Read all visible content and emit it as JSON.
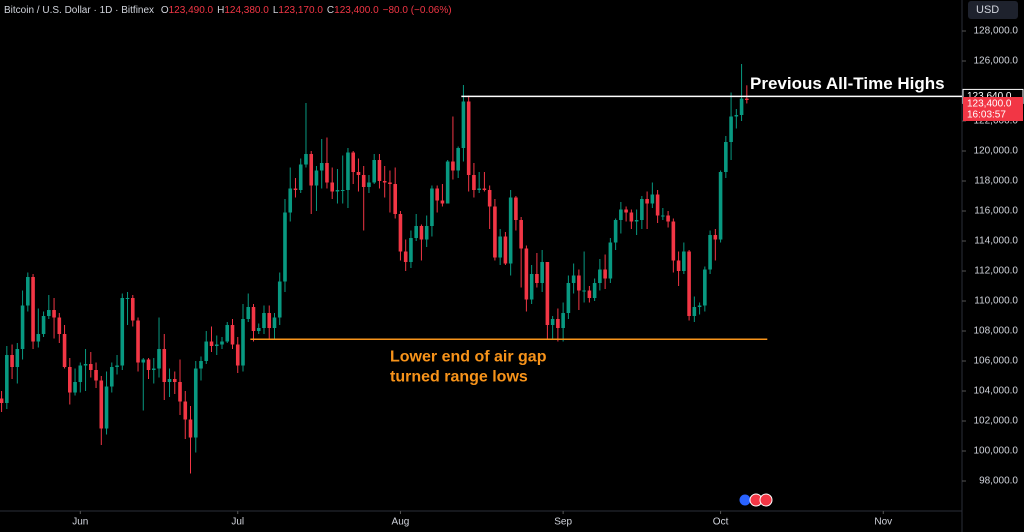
{
  "chart_data": {
    "type": "candlestick",
    "header": {
      "symbol": "Bitcoin / U.S. Dollar · 1D · Bitfinex",
      "fields": [
        {
          "key": "O",
          "text": "123,490.0"
        },
        {
          "key": "H",
          "text": "124,380.0"
        },
        {
          "key": "L",
          "text": "123,170.0"
        },
        {
          "key": "C",
          "text": "123,400.0"
        }
      ],
      "change": "−80.0 (−0.06%)"
    },
    "currency": "USD",
    "up_color": "#089981",
    "down_color": "#f23645",
    "xlim": [
      0.7,
      184
    ],
    "xticks": [
      {
        "value": 16,
        "label": "Jun"
      },
      {
        "value": 46,
        "label": "Jul"
      },
      {
        "value": 77,
        "label": "Aug"
      },
      {
        "value": 108,
        "label": "Sep"
      },
      {
        "value": 138,
        "label": "Oct"
      },
      {
        "value": 169,
        "label": "Nov"
      }
    ],
    "ylim": [
      96067,
      130067
    ],
    "yticks": [
      {
        "value": 98000,
        "label": "98,000.0"
      },
      {
        "value": 100000,
        "label": "100,000.0"
      },
      {
        "value": 102000,
        "label": "102,000.0"
      },
      {
        "value": 104000,
        "label": "104,000.0"
      },
      {
        "value": 106000,
        "label": "106,000.0"
      },
      {
        "value": 108000,
        "label": "108,000.0"
      },
      {
        "value": 110000,
        "label": "110,000.0"
      },
      {
        "value": 112000,
        "label": "112,000.0"
      },
      {
        "value": 114000,
        "label": "114,000.0"
      },
      {
        "value": 116000,
        "label": "116,000.0"
      },
      {
        "value": 118000,
        "label": "118,000.0"
      },
      {
        "value": 120000,
        "label": "120,000.0"
      },
      {
        "value": 122000,
        "label": "122,000.0"
      },
      {
        "value": 126000,
        "label": "126,000.0"
      },
      {
        "value": 128000,
        "label": "128,000.0"
      }
    ],
    "grid": false,
    "open": [
      103800,
      103500,
      103200,
      106400,
      105600,
      106800,
      109700,
      111600,
      107300,
      107800,
      109000,
      109400,
      108900,
      107800,
      105600,
      103900,
      104600,
      105700,
      105800,
      105400,
      104700,
      101500,
      104300,
      105600,
      105700,
      110200,
      110200,
      108700,
      105900,
      106100,
      105400,
      105500,
      106800,
      104600,
      104800,
      104600,
      103300,
      102100,
      100900,
      105500,
      106000,
      107300,
      107000,
      107100,
      107300,
      108400,
      107100,
      105700,
      108800,
      109600,
      108000,
      108200,
      109200,
      108200,
      108900,
      111300,
      115900,
      117500,
      117400,
      119100,
      119800,
      117700,
      118700,
      119200,
      117900,
      117300,
      117400,
      117400,
      119900,
      118600,
      118400,
      117600,
      117900,
      119400,
      118000,
      117900,
      117800,
      115800,
      113300,
      112600,
      114200,
      115000,
      114100,
      115000,
      117500,
      116700,
      116500,
      119300,
      118700,
      120200,
      123300,
      118400,
      117400,
      117500,
      117400,
      116300,
      112900,
      114300,
      112500,
      116900,
      115400,
      113500,
      110100,
      111800,
      111200,
      112600,
      108400,
      108800,
      108200,
      109200,
      111200,
      111700,
      110700,
      110700,
      110200,
      111200,
      112100,
      111500,
      113900,
      115400,
      116100,
      115900,
      115300,
      115400,
      116800,
      116500,
      117100,
      115700,
      115700,
      115300,
      112700,
      112000,
      113300,
      109000,
      109600,
      109700,
      112100,
      114400,
      114100,
      118600,
      120600,
      122300,
      122400,
      123490
    ],
    "high": [
      104400,
      104000,
      107000,
      107100,
      107200,
      110700,
      111900,
      111800,
      109500,
      109300,
      110400,
      110200,
      109200,
      108400,
      106200,
      105500,
      105900,
      106800,
      106600,
      105900,
      105000,
      105300,
      105900,
      106400,
      110500,
      110600,
      110400,
      108900,
      106200,
      106200,
      106200,
      108900,
      107800,
      105500,
      105300,
      106100,
      104000,
      103000,
      106000,
      106300,
      108000,
      108300,
      107700,
      107600,
      108600,
      108800,
      107600,
      109800,
      110500,
      109800,
      108500,
      109700,
      109700,
      109200,
      111900,
      116800,
      118900,
      118200,
      119500,
      123200,
      120000,
      119000,
      120800,
      120900,
      118900,
      118800,
      119700,
      120200,
      120000,
      119500,
      119000,
      118400,
      119800,
      119800,
      119000,
      118700,
      118900,
      116000,
      114100,
      114700,
      115800,
      115100,
      115700,
      117700,
      117700,
      117800,
      119400,
      122300,
      120300,
      124400,
      123700,
      119200,
      118600,
      118600,
      117700,
      116800,
      114800,
      114600,
      117400,
      117000,
      115600,
      113700,
      112400,
      113200,
      113400,
      112600,
      109000,
      109500,
      109900,
      111700,
      112500,
      112100,
      113300,
      111000,
      111500,
      112800,
      113100,
      114200,
      115500,
      116600,
      116300,
      116100,
      116100,
      117000,
      117300,
      117900,
      117400,
      116200,
      116000,
      115500,
      113300,
      113900,
      113400,
      110300,
      109900,
      112300,
      114700,
      114800,
      118700,
      121000,
      123900,
      122800,
      125800,
      124380
    ],
    "low": [
      102700,
      102600,
      102800,
      104800,
      104500,
      106100,
      109300,
      106800,
      106900,
      107600,
      108800,
      107500,
      107200,
      105500,
      103100,
      103700,
      103900,
      104000,
      104900,
      104200,
      100400,
      101100,
      103900,
      105100,
      105400,
      108400,
      108300,
      105300,
      102700,
      104800,
      104500,
      104900,
      103400,
      103600,
      103800,
      102400,
      100800,
      98500,
      99900,
      104700,
      105800,
      106600,
      106400,
      106800,
      107200,
      106800,
      105200,
      105300,
      108600,
      107300,
      107800,
      107800,
      107500,
      107500,
      108400,
      110600,
      115300,
      116900,
      117200,
      118900,
      115800,
      116000,
      117500,
      117500,
      116800,
      116500,
      116500,
      116200,
      117800,
      117300,
      114700,
      117200,
      117800,
      117500,
      116900,
      115900,
      115500,
      112700,
      112000,
      112200,
      114000,
      112700,
      113600,
      114300,
      115900,
      116300,
      116500,
      118100,
      118200,
      119300,
      117300,
      116900,
      117200,
      117300,
      114800,
      112700,
      112400,
      112400,
      111700,
      114700,
      110900,
      109300,
      109800,
      110900,
      110600,
      107400,
      107400,
      107300,
      107300,
      108800,
      110500,
      109400,
      109900,
      109900,
      110000,
      110700,
      110800,
      111200,
      113400,
      114500,
      115300,
      114800,
      114400,
      114800,
      114800,
      116200,
      115200,
      115400,
      114900,
      111900,
      111000,
      111800,
      108700,
      108600,
      109100,
      109300,
      111800,
      112700,
      113900,
      118200,
      119400,
      121500,
      122000,
      123170
    ],
    "close": [
      103500,
      103200,
      106400,
      105600,
      106800,
      109700,
      111600,
      107300,
      107800,
      109000,
      109400,
      108900,
      107800,
      105600,
      103900,
      104600,
      105700,
      105800,
      105400,
      104700,
      101500,
      104300,
      105600,
      105700,
      110200,
      110200,
      108700,
      105900,
      106100,
      105400,
      105500,
      106800,
      104600,
      104800,
      104600,
      103300,
      102100,
      100900,
      105500,
      106000,
      107300,
      107000,
      107100,
      107300,
      108400,
      107100,
      105700,
      108800,
      109600,
      108000,
      108200,
      109200,
      108200,
      108900,
      111300,
      115900,
      117500,
      117400,
      119100,
      119800,
      117700,
      118700,
      119200,
      117900,
      117300,
      117400,
      117400,
      119900,
      118600,
      118400,
      117600,
      117900,
      119400,
      118000,
      117900,
      117800,
      115800,
      113300,
      112600,
      114200,
      115000,
      114100,
      115000,
      117500,
      116700,
      116500,
      119300,
      118700,
      120200,
      123300,
      118400,
      117400,
      117500,
      117400,
      116300,
      112900,
      114300,
      112500,
      116900,
      115400,
      113500,
      110100,
      111800,
      111200,
      112600,
      108400,
      108800,
      108200,
      109200,
      111200,
      111700,
      110700,
      110700,
      110200,
      111200,
      112100,
      111500,
      113900,
      115400,
      116100,
      115900,
      115300,
      115400,
      116800,
      116500,
      117100,
      115700,
      115700,
      115300,
      112700,
      112000,
      113300,
      109000,
      109600,
      109700,
      112100,
      114400,
      114100,
      118600,
      120600,
      122300,
      122400,
      123490,
      123400
    ],
    "price_labels": [
      {
        "value": 123640,
        "label": "123,640.0",
        "color": "#000000"
      },
      {
        "value": 123400,
        "label": "123,400.0",
        "countdown": "16:03:57",
        "color": "#f23645"
      }
    ],
    "levels": [
      {
        "value": 123640,
        "from": 88.6,
        "color": "#ffffff",
        "label": [
          "Previous All-Time Highs"
        ]
      },
      {
        "value": 107450,
        "from": 48.4,
        "to": 146.9,
        "color": "#f7931a",
        "label": [
          "Lower end of air gap",
          "turned range lows"
        ]
      }
    ]
  }
}
